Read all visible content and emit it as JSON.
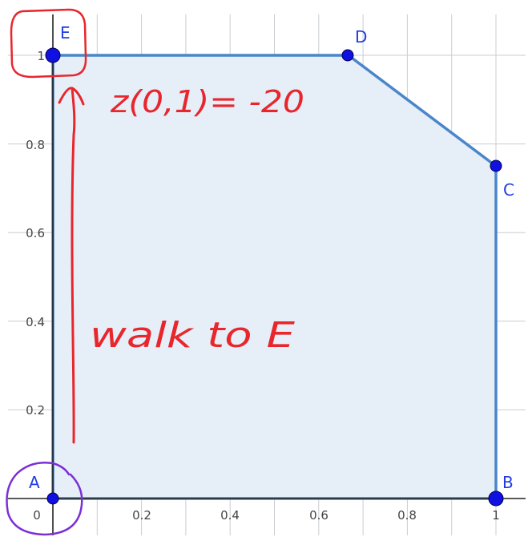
{
  "axes": {
    "x_ticks": [
      "0",
      "0.2",
      "0.4",
      "0.6",
      "0.8",
      "1"
    ],
    "y_ticks": [
      "0.2",
      "0.4",
      "0.6",
      "0.8",
      "1"
    ]
  },
  "points": [
    {
      "label": "A",
      "x": 0,
      "y": 0
    },
    {
      "label": "B",
      "x": 1,
      "y": 0
    },
    {
      "label": "C",
      "x": 1,
      "y": 0.75
    },
    {
      "label": "D",
      "x": 0.667,
      "y": 1
    },
    {
      "label": "E",
      "x": 0,
      "y": 1
    }
  ],
  "annotations": {
    "value_note": "z(0,1)= -20",
    "walk_note": "walk to E"
  },
  "colors": {
    "region_fill": "#e6eef8",
    "region_edge": "#4a86c8",
    "point": "#1010e0",
    "label": "#1f3de0",
    "annotation": "#e8262c",
    "circle_start": "#7b2fd6",
    "circle_end": "#e8262c"
  }
}
